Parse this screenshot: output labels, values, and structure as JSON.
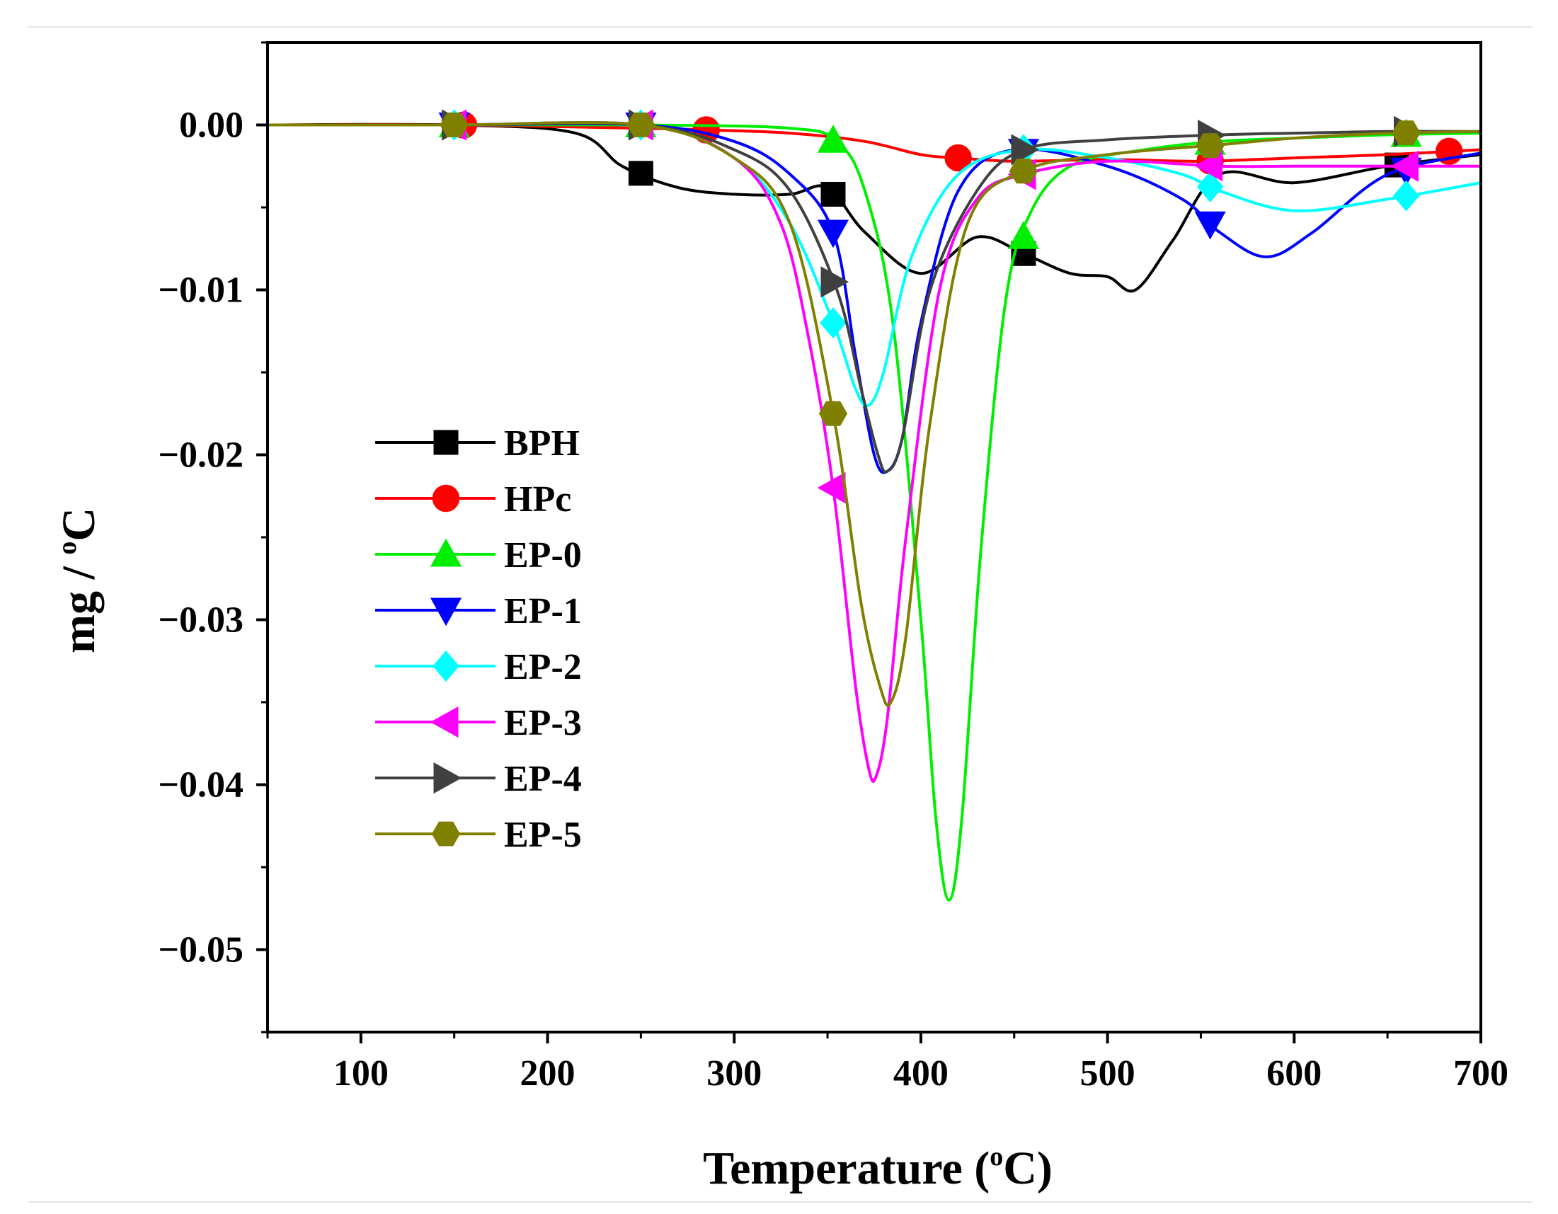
{
  "chart_data": {
    "type": "line",
    "xlabel": "Temperature",
    "xlabel_unit": "C",
    "xlabel_sup": "o",
    "ylabel": "mg / ",
    "ylabel_unit": "C",
    "ylabel_sup": "o",
    "xlim": [
      50,
      700
    ],
    "ylim": [
      -0.055,
      0.005
    ],
    "xticks": [
      100,
      200,
      300,
      400,
      500,
      600,
      700
    ],
    "xtick_labels": [
      "100",
      "200",
      "300",
      "400",
      "500",
      "600",
      "700"
    ],
    "yticks": [
      0,
      -0.01,
      -0.02,
      -0.03,
      -0.04,
      -0.05
    ],
    "ytick_labels": [
      "0.00",
      "−0.01",
      "−0.02",
      "−0.03",
      "−0.04",
      "−0.05"
    ],
    "legend_position": "lower-left",
    "series": [
      {
        "name": "BPH",
        "color": "#000000",
        "marker": "square",
        "x": [
          50,
          150,
          215,
          240,
          270,
          300,
          330,
          350,
          370,
          400,
          430,
          455,
          480,
          500,
          515,
          535,
          560,
          600,
          650,
          700
        ],
        "y": [
          0,
          0,
          -0.0005,
          -0.0025,
          -0.0038,
          -0.0042,
          -0.0042,
          -0.0038,
          -0.0065,
          -0.009,
          -0.0068,
          -0.0078,
          -0.009,
          -0.0092,
          -0.01,
          -0.007,
          -0.003,
          -0.0035,
          -0.0025,
          -0.0018
        ],
        "marker_x": [
          250,
          353,
          455,
          655
        ]
      },
      {
        "name": "HPc",
        "color": "#ff0000",
        "marker": "circle",
        "x": [
          50,
          150,
          250,
          285,
          330,
          370,
          400,
          420,
          450,
          500,
          550,
          600,
          650,
          700
        ],
        "y": [
          0,
          0,
          -0.0002,
          -0.0003,
          -0.0005,
          -0.001,
          -0.0018,
          -0.002,
          -0.0022,
          -0.0021,
          -0.0022,
          -0.002,
          -0.0018,
          -0.0015
        ],
        "marker_x": [
          155,
          285,
          420,
          555,
          683
        ]
      },
      {
        "name": "EP-0",
        "color": "#00ee00",
        "marker": "triangle-up",
        "x": [
          50,
          150,
          250,
          330,
          355,
          370,
          385,
          400,
          408,
          415,
          422,
          432,
          445,
          458,
          480,
          520,
          560,
          600,
          650,
          700
        ],
        "y": [
          0,
          0,
          0,
          -0.0002,
          -0.001,
          -0.004,
          -0.012,
          -0.03,
          -0.042,
          -0.047,
          -0.042,
          -0.026,
          -0.011,
          -0.0055,
          -0.0025,
          -0.0015,
          -0.001,
          -0.0008,
          -0.0006,
          -0.0005
        ],
        "marker_x": [
          150,
          250,
          353,
          455,
          555,
          660
        ]
      },
      {
        "name": "EP-1",
        "color": "#0000ff",
        "marker": "triangle-down",
        "x": [
          50,
          150,
          250,
          300,
          330,
          353,
          365,
          375,
          382,
          390,
          400,
          420,
          450,
          500,
          540,
          560,
          585,
          610,
          650,
          700
        ],
        "y": [
          0,
          0,
          0,
          -0.001,
          -0.003,
          -0.0065,
          -0.014,
          -0.02,
          -0.021,
          -0.019,
          -0.012,
          -0.004,
          -0.0015,
          -0.0025,
          -0.0045,
          -0.0065,
          -0.008,
          -0.0065,
          -0.003,
          -0.0017
        ],
        "marker_x": [
          150,
          250,
          353,
          455,
          555,
          660
        ]
      },
      {
        "name": "EP-2",
        "color": "#00ffff",
        "marker": "diamond",
        "x": [
          50,
          150,
          250,
          300,
          330,
          353,
          365,
          372,
          380,
          395,
          420,
          455,
          500,
          540,
          560,
          600,
          650,
          700
        ],
        "y": [
          0,
          0,
          0,
          -0.002,
          -0.006,
          -0.012,
          -0.016,
          -0.017,
          -0.015,
          -0.008,
          -0.003,
          -0.0015,
          -0.002,
          -0.003,
          -0.004,
          -0.0052,
          -0.0045,
          -0.0035
        ],
        "marker_x": [
          150,
          250,
          353,
          455,
          555,
          660
        ]
      },
      {
        "name": "EP-3",
        "color": "#ff00ff",
        "marker": "triangle-left",
        "x": [
          50,
          150,
          250,
          300,
          325,
          340,
          353,
          365,
          372,
          376,
          382,
          392,
          410,
          430,
          455,
          500,
          560,
          600,
          650,
          700
        ],
        "y": [
          0,
          0,
          0,
          -0.002,
          -0.006,
          -0.013,
          -0.022,
          -0.034,
          -0.039,
          -0.0395,
          -0.036,
          -0.025,
          -0.01,
          -0.0045,
          -0.003,
          -0.0022,
          -0.0025,
          -0.0025,
          -0.0025,
          -0.0025
        ],
        "marker_x": [
          150,
          250,
          353,
          455,
          555,
          660
        ]
      },
      {
        "name": "EP-4",
        "color": "#404040",
        "marker": "triangle-right",
        "x": [
          50,
          150,
          250,
          300,
          330,
          355,
          368,
          377,
          382,
          390,
          405,
          430,
          455,
          500,
          560,
          600,
          650,
          700
        ],
        "y": [
          0,
          0,
          0,
          -0.0015,
          -0.004,
          -0.01,
          -0.016,
          -0.02,
          -0.021,
          -0.019,
          -0.01,
          -0.004,
          -0.0015,
          -0.0009,
          -0.0006,
          -0.0005,
          -0.0004,
          -0.0004
        ],
        "marker_x": [
          150,
          250,
          353,
          455,
          555,
          660
        ]
      },
      {
        "name": "EP-5",
        "color": "#808000",
        "marker": "hexagon",
        "x": [
          50,
          150,
          250,
          300,
          330,
          353,
          368,
          378,
          384,
          392,
          405,
          425,
          455,
          500,
          560,
          600,
          650,
          700
        ],
        "y": [
          0,
          0,
          0,
          -0.002,
          -0.006,
          -0.0175,
          -0.029,
          -0.034,
          -0.035,
          -0.031,
          -0.018,
          -0.006,
          -0.0028,
          -0.0018,
          -0.0012,
          -0.0008,
          -0.0005,
          -0.0004
        ],
        "marker_x": [
          150,
          250,
          353,
          455,
          555,
          660
        ]
      }
    ]
  }
}
